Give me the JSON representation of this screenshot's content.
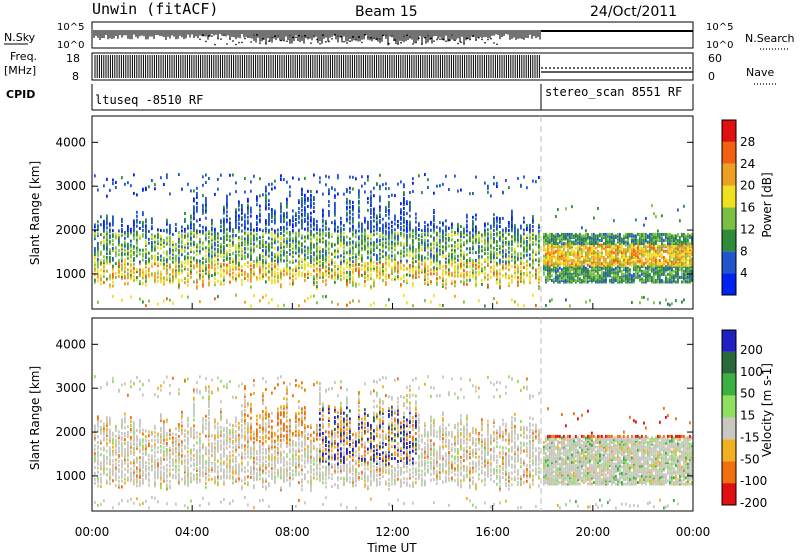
{
  "header": {
    "title": "Unwin (fitACF)",
    "beam": "Beam 15",
    "date": "24/Oct/2011"
  },
  "top_panels": {
    "nsky_label": "N.Sky",
    "nsky_ticks_left": [
      "10^5",
      "10^0"
    ],
    "nsky_ticks_right": [
      "10^5",
      "10^0"
    ],
    "nsearch_label": "N.Search",
    "freq_label": "Freq.",
    "freq_unit": "[MHz]",
    "freq_ticks": [
      "18",
      "8"
    ],
    "nave_ticks": [
      "60",
      "0"
    ],
    "nave_label": "Nave",
    "cpid_label": "CPID",
    "cpid_1": "ltuseq -8510 RF",
    "cpid_2": "stereo_scan 8551 RF"
  },
  "chart_data": [
    {
      "type": "heatmap",
      "name": "power",
      "ylabel": "Slant Range [km]",
      "yticks": [
        "1000",
        "2000",
        "3000",
        "4000"
      ],
      "ylim": [
        200,
        4600
      ],
      "xlim": [
        0,
        24
      ],
      "colorbar_label": "Power [dB]",
      "colorbar_ticks": [
        "4",
        "8",
        "12",
        "16",
        "20",
        "24",
        "28"
      ],
      "colors": [
        "#0022ee",
        "#2255cc",
        "#2e8b3a",
        "#7cc043",
        "#f0e020",
        "#f0a020",
        "#f06010",
        "#e01010"
      ]
    },
    {
      "type": "heatmap",
      "name": "velocity",
      "ylabel": "Slant Range [km]",
      "yticks": [
        "1000",
        "2000",
        "3000",
        "4000"
      ],
      "ylim": [
        200,
        4600
      ],
      "xlim": [
        0,
        24
      ],
      "colorbar_label": "Velocity [m s-1]",
      "colorbar_ticks": [
        "200",
        "100",
        "50",
        "15",
        "-15",
        "-50",
        "-100",
        "-200"
      ],
      "colors": [
        "#2020c0",
        "#2a6a3a",
        "#3cb040",
        "#90e060",
        "#c8c8c0",
        "#f0b020",
        "#f07010",
        "#e01010"
      ]
    }
  ],
  "xaxis": {
    "ticks": [
      "00:00",
      "04:00",
      "08:00",
      "12:00",
      "16:00",
      "20:00",
      "00:00"
    ],
    "label": "Time UT"
  }
}
